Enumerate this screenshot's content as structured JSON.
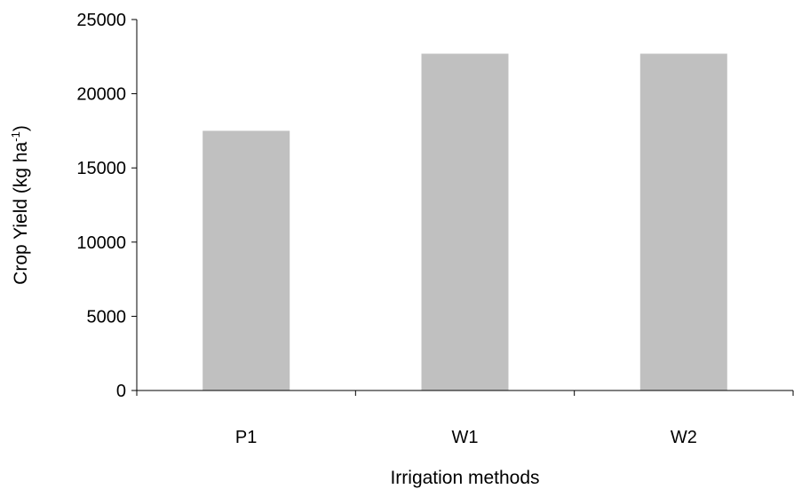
{
  "chart_data": {
    "type": "bar",
    "categories": [
      "P1",
      "W1",
      "W2"
    ],
    "values": [
      17500,
      22700,
      22700
    ],
    "xlabel": "Irrigation  methods",
    "ylabel": {
      "main": "Crop Yield (kg ha",
      "superscript": "-1",
      "close": ")"
    },
    "ylim": [
      0,
      25000
    ],
    "yticks": [
      "0",
      "5000",
      "10000",
      "15000",
      "20000",
      "25000"
    ],
    "grid": false,
    "legend": "none",
    "bar_color": "#c0c0c0",
    "axis_color": "#000000"
  }
}
